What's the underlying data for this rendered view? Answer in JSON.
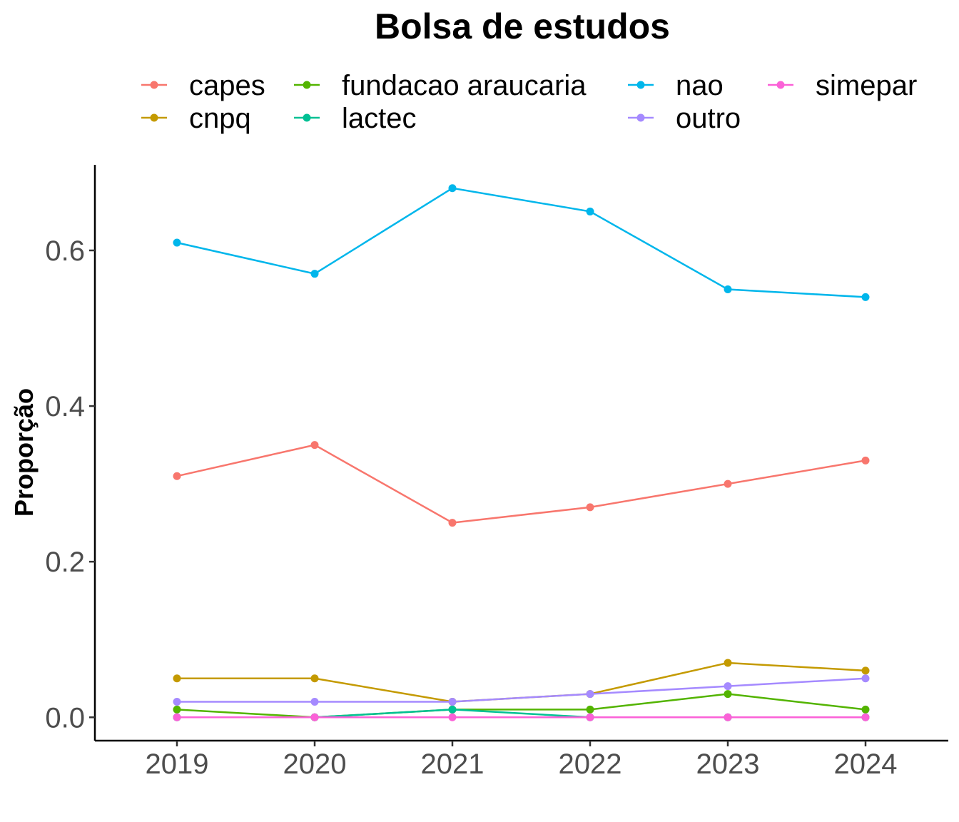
{
  "chart_data": {
    "type": "line",
    "title": "Bolsa de estudos",
    "xlabel": "",
    "ylabel": "Proporção",
    "x": [
      "2019",
      "2020",
      "2021",
      "2022",
      "2023",
      "2024"
    ],
    "ylim": [
      -0.03,
      0.71
    ],
    "yticks": [
      "0.0",
      "0.2",
      "0.4",
      "0.6"
    ],
    "grid": false,
    "legend_position": "top",
    "series": [
      {
        "name": "capes",
        "color": "#F8766D",
        "values": [
          0.31,
          0.35,
          0.25,
          0.27,
          0.3,
          0.33
        ]
      },
      {
        "name": "cnpq",
        "color": "#C49A00",
        "values": [
          0.05,
          0.05,
          0.02,
          0.03,
          0.07,
          0.06
        ]
      },
      {
        "name": "fundacao araucaria",
        "color": "#53B400",
        "values": [
          0.01,
          0.0,
          0.01,
          0.01,
          0.03,
          0.01
        ]
      },
      {
        "name": "lactec",
        "color": "#00C094",
        "values": [
          0.0,
          0.0,
          0.01,
          0.0,
          0.0,
          0.0
        ]
      },
      {
        "name": "nao",
        "color": "#00B6EB",
        "values": [
          0.61,
          0.57,
          0.68,
          0.65,
          0.55,
          0.54
        ]
      },
      {
        "name": "outro",
        "color": "#A58AFF",
        "values": [
          0.02,
          0.02,
          0.02,
          0.03,
          0.04,
          0.05
        ]
      },
      {
        "name": "simepar",
        "color": "#FB61D7",
        "values": [
          0.0,
          0.0,
          0.0,
          0.0,
          0.0,
          0.0
        ]
      }
    ]
  }
}
